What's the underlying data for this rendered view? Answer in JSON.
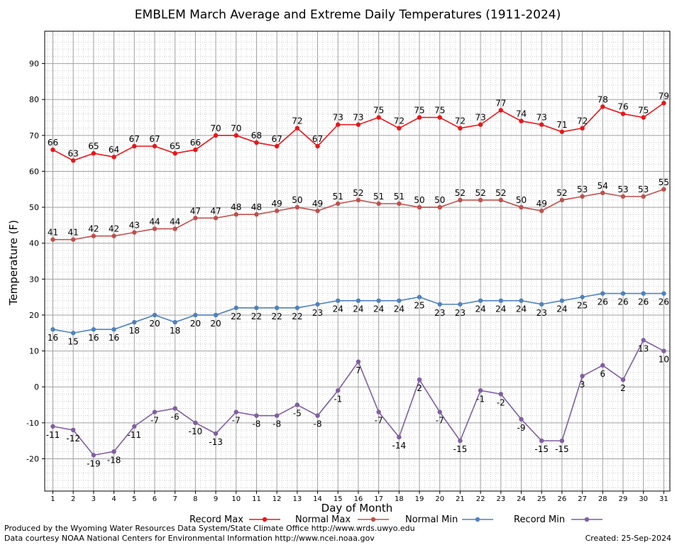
{
  "chart_data": {
    "type": "line",
    "title": "EMBLEM March Average and Extreme Daily Temperatures (1911-2024)",
    "xlabel": "Day of Month",
    "ylabel": "Temperature (F)",
    "x": [
      1,
      2,
      3,
      4,
      5,
      6,
      7,
      8,
      9,
      10,
      11,
      12,
      13,
      14,
      15,
      16,
      17,
      18,
      19,
      20,
      21,
      22,
      23,
      24,
      25,
      26,
      27,
      28,
      29,
      30,
      31
    ],
    "xlim": [
      0.6,
      31.3
    ],
    "ylim": [
      -29,
      99
    ],
    "yticks": [
      -20,
      -10,
      0,
      10,
      20,
      30,
      40,
      50,
      60,
      70,
      80,
      90
    ],
    "grid": true,
    "legend_position": "bottom",
    "series": [
      {
        "name": "Record Max",
        "color": "#e8161b",
        "label_position": "above",
        "values": [
          66,
          63,
          65,
          64,
          67,
          67,
          65,
          66,
          70,
          70,
          68,
          67,
          72,
          67,
          73,
          73,
          75,
          72,
          75,
          75,
          72,
          73,
          77,
          74,
          73,
          71,
          72,
          78,
          76,
          75,
          79
        ]
      },
      {
        "name": "Normal Max",
        "color": "#c0504d",
        "label_position": "above",
        "values": [
          41,
          41,
          42,
          42,
          43,
          44,
          44,
          47,
          47,
          48,
          48,
          49,
          50,
          49,
          51,
          52,
          51,
          51,
          50,
          50,
          52,
          52,
          52,
          50,
          49,
          52,
          53,
          54,
          53,
          53,
          55
        ]
      },
      {
        "name": "Normal Min",
        "color": "#4f81bd",
        "label_position": "below",
        "values": [
          16,
          15,
          16,
          16,
          18,
          20,
          18,
          20,
          20,
          22,
          22,
          22,
          22,
          23,
          24,
          24,
          24,
          24,
          25,
          23,
          23,
          24,
          24,
          24,
          23,
          24,
          25,
          26,
          26,
          26,
          26
        ]
      },
      {
        "name": "Record Min",
        "color": "#7f5fa0",
        "label_position": "below",
        "values": [
          -11,
          -12,
          -19,
          -18,
          -11,
          -7,
          -6,
          -10,
          -13,
          -7,
          -8,
          -8,
          -5,
          -8,
          -1,
          7,
          -7,
          -14,
          2,
          -7,
          -15,
          -1,
          -2,
          -9,
          -15,
          -15,
          3,
          6,
          2,
          13,
          10
        ]
      }
    ]
  },
  "footer": {
    "produced_by": "Produced by the Wyoming Water Resources Data System/State Climate Office http://www.wrds.uwyo.edu",
    "courtesy": "Data courtesy NOAA National Centers for Environmental Information http://www.ncei.noaa.gov",
    "created": "Created: 25-Sep-2024"
  }
}
